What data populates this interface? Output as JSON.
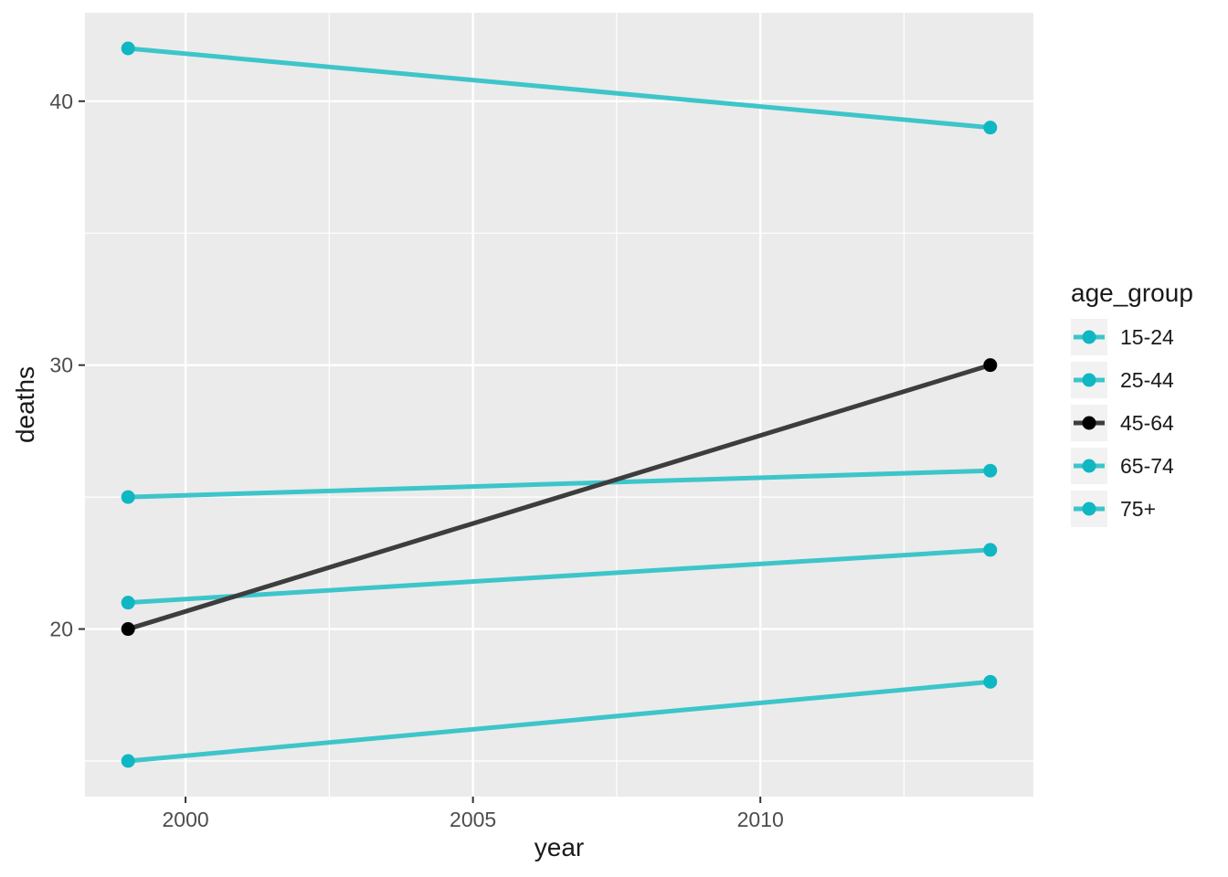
{
  "chart_data": {
    "type": "line",
    "title": "",
    "xlabel": "year",
    "ylabel": "deaths",
    "legend_title": "age_group",
    "legend_position": "right",
    "grid": true,
    "x": [
      1999,
      2014
    ],
    "series": [
      {
        "name": "15-24",
        "values": [
          15,
          18
        ],
        "line_color": "#3DC5CA",
        "point_color": "#0FB7C2",
        "highlight": false
      },
      {
        "name": "25-44",
        "values": [
          21,
          23
        ],
        "line_color": "#3DC5CA",
        "point_color": "#0FB7C2",
        "highlight": false
      },
      {
        "name": "45-64",
        "values": [
          20,
          30
        ],
        "line_color": "#3D3D3D",
        "point_color": "#000000",
        "highlight": true
      },
      {
        "name": "65-74",
        "values": [
          25,
          26
        ],
        "line_color": "#3DC5CA",
        "point_color": "#0FB7C2",
        "highlight": false
      },
      {
        "name": "75+",
        "values": [
          42,
          39
        ],
        "line_color": "#3DC5CA",
        "point_color": "#0FB7C2",
        "highlight": false
      }
    ],
    "xlim": [
      1998.25,
      2014.75
    ],
    "ylim": [
      13.65,
      43.35
    ],
    "x_major_ticks": [
      2000,
      2005,
      2010
    ],
    "x_minor_ticks": [
      2002.5,
      2007.5,
      2012.5
    ],
    "y_major_ticks": [
      20,
      30,
      40
    ],
    "y_minor_ticks": [
      15,
      25,
      35
    ],
    "x_tick_labels": [
      "2000",
      "2005",
      "2010"
    ],
    "y_tick_labels": [
      "20",
      "30",
      "40"
    ],
    "colors": {
      "panel_bg": "#EBEBEB",
      "grid": "#FFFFFF",
      "tick_mark": "#333333",
      "tick_text": "#4D4D4D",
      "axis_title_text": "#1A1A1A",
      "legend_key_bg": "#F2F2F2",
      "teal": "#3DC5CA",
      "highlight_black": "#000000",
      "outer_bg": "#FFFFFF"
    }
  }
}
